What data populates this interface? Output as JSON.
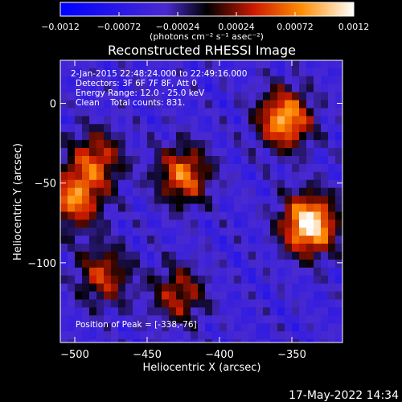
{
  "chart_data": {
    "type": "heatmap",
    "title": "Reconstructed RHESSI Image",
    "xlabel": "Heliocentric X (arcsec)",
    "ylabel": "Heliocentric Y (arcsec)",
    "xlim": [
      -510,
      -315
    ],
    "ylim": [
      -150,
      27
    ],
    "x_ticks": [
      -500,
      -450,
      -400,
      -350
    ],
    "x_tick_labels": [
      "−500",
      "−450",
      "−400",
      "−350"
    ],
    "y_ticks": [
      0,
      -50,
      -100
    ],
    "y_tick_labels": [
      "0",
      "−50",
      "−100"
    ],
    "colorbar": {
      "range": [
        -0.0012,
        0.0012
      ],
      "ticks": [
        -0.0012,
        -0.00072,
        -0.00024,
        0.00024,
        0.00072,
        0.0012
      ],
      "tick_labels": [
        "−0.0012",
        "−0.00072",
        "−0.00024",
        "0.00024",
        "0.00072",
        "0.0012"
      ],
      "unit_label": "(photons cm⁻² s⁻¹ asec⁻²)"
    },
    "annotations": [
      "2-Jan-2015 22:48:24.000 to 22:49:16.000",
      "Detectors: 3F 6F 7F 8F, Att 0",
      "Energy Range: 12.0 - 25.0 keV",
      "Clean    Total counts: 831.",
      "Position of Peak = [-338,-76]"
    ],
    "sources": [
      {
        "x": -338,
        "y": -76,
        "intensity": 0.00118
      },
      {
        "x": -355,
        "y": -10,
        "intensity": 0.00085
      },
      {
        "x": -425,
        "y": -45,
        "intensity": 0.0006
      },
      {
        "x": -500,
        "y": -60,
        "intensity": 0.00062
      },
      {
        "x": -485,
        "y": -35,
        "intensity": 0.0004
      },
      {
        "x": -480,
        "y": -108,
        "intensity": 0.00035
      },
      {
        "x": -428,
        "y": -120,
        "intensity": 0.0003
      }
    ],
    "peak": {
      "x": -338,
      "y": -76
    }
  },
  "footer": {
    "timestamp": "17-May-2022 14:34"
  }
}
